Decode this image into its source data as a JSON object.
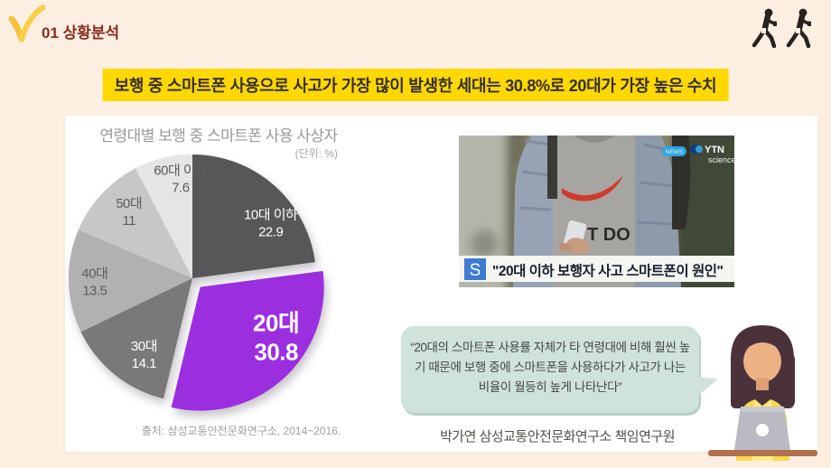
{
  "page": {
    "section_label": "01 상황분석",
    "headline": "보행 중 스마트폰 사용으로 사고가 가장 많이 발생한 세대는 30.8%로 20대가 가장 높은 수치",
    "banner_color": "#ffd800",
    "background_color": "#fcefe2",
    "section_label_color": "#892d20"
  },
  "chart_data": {
    "type": "pie",
    "title": "연령대별 보행 중 스마트폰 사용 사상자",
    "unit_label": "(단위: %)",
    "unit": "%",
    "start_angle_deg": 0,
    "legend": "none",
    "labels_inside": true,
    "slices": [
      {
        "label": "10대 이하",
        "value": 22.9,
        "color": "#59565A",
        "text_color": "#ffffff"
      },
      {
        "label": "20대",
        "value": 30.8,
        "color": "#9B2FE0",
        "text_color": "#ffffff",
        "exploded": true,
        "emphasis": true
      },
      {
        "label": "30대",
        "value": 14.1,
        "color": "#7B787B",
        "text_color": "#ffffff"
      },
      {
        "label": "40대",
        "value": 13.5,
        "color": "#B3B0B1",
        "text_color": "#5e5b5e"
      },
      {
        "label": "50대",
        "value": 11,
        "color": "#C9C6C7",
        "text_color": "#5e5b5e"
      },
      {
        "label": "60대 이상",
        "value": 7.6,
        "color": "#E6E4E5",
        "text_color": "#5e5b5e"
      }
    ],
    "source": "출처: 삼성교통안전문화연구소, 2014~2016."
  },
  "news": {
    "badge": "NEWS",
    "channel": "YTN",
    "channel_sub": "science",
    "caption_logo": "S",
    "caption": "\"20대 이하 보행자 사고 스마트폰이 원인\"",
    "shirt_text": "T DO"
  },
  "quote": {
    "text": "“20대의 스마트폰 사용률 자체가 타 연령대에 비해 훨씬 높기 때문에 보행 중에 스마트폰을 사용하다가 사고가 나는 비율이 월등히 높게 나타난다”",
    "attribution": "박가연 삼성교통안전문화연구소 책임연구원"
  }
}
